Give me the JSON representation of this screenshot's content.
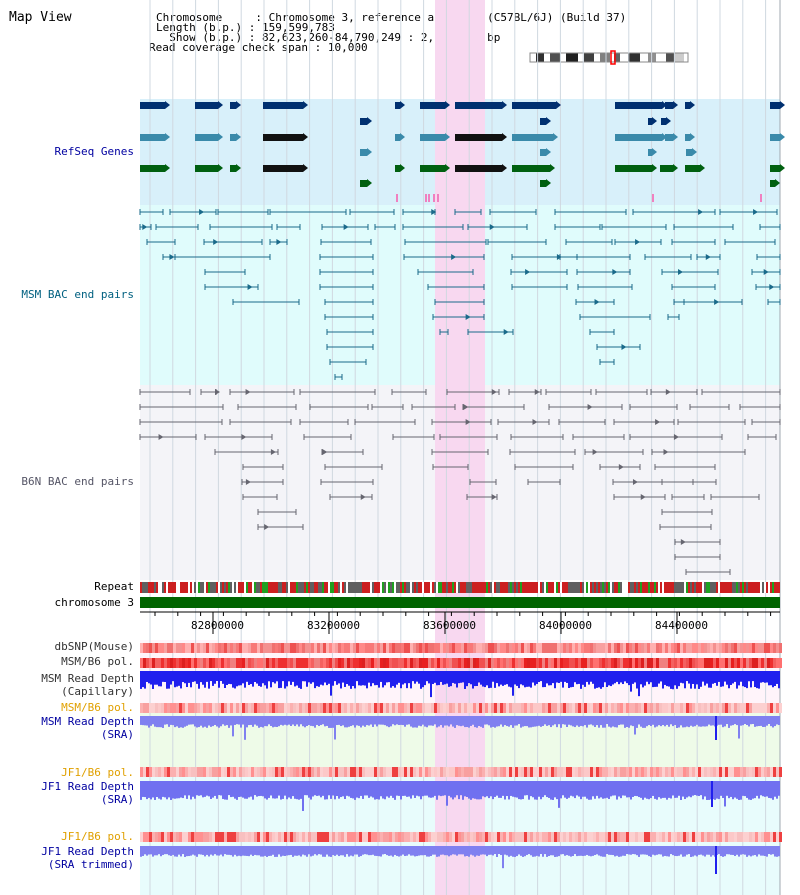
{
  "view_title": "Map View",
  "header": {
    "rows": [
      {
        "key": "Chromosome     ",
        "value": "Chromosome 3, reference assembly (C57BL/6J) (Build 37)"
      },
      {
        "key": "Length (b.p.) ",
        "value": "159,599,783"
      },
      {
        "key": "  Show (b.p.) ",
        "value": "82,623,260-84,790,249 : 2,166,990 bp"
      },
      {
        "key": "Read coverage check span ",
        "value": "10,000"
      }
    ]
  },
  "tracks": {
    "refseq": "RefSeq Genes",
    "msm_bac": "MSM BAC end pairs",
    "b6n_bac": "B6N BAC end pairs",
    "repeat": "Repeat",
    "chromosome": "chromosome 3",
    "dbsnp": "dbSNP(Mouse)",
    "msm_b6_pol": "MSM/B6 pol.",
    "msm_read_depth_cap_1": "MSM Read Depth",
    "msm_read_depth_cap_2": "(Capillary)",
    "msm_b6_pol_2": "MSM/B6 pol.",
    "msm_read_depth_sra_1": "MSM Read Depth",
    "msm_read_depth_sra_2": "(SRA)",
    "jf1_b6_pol": "JF1/B6 pol.",
    "jf1_read_depth_sra_1": "JF1 Read Depth",
    "jf1_read_depth_sra_2": "(SRA)",
    "jf1_b6_pol_2": "JF1/B6 pol.",
    "jf1_read_depth_trim_1": "JF1 Read Depth",
    "jf1_read_depth_trim_2": "(SRA trimmed)"
  },
  "axis": {
    "ticks": [
      "82800000",
      "83200000",
      "83600000",
      "84000000",
      "84400000"
    ]
  },
  "colors": {
    "refseq_bg": "#d8f0fa",
    "msm_bg": "#e0fcfc",
    "b6n_bg": "#f4f4f8",
    "highlight": "#f8d8f0",
    "chromosome": "#006400",
    "label_blue": "#0000a0",
    "label_teal": "#006080",
    "label_orange": "#e0a000"
  }
}
